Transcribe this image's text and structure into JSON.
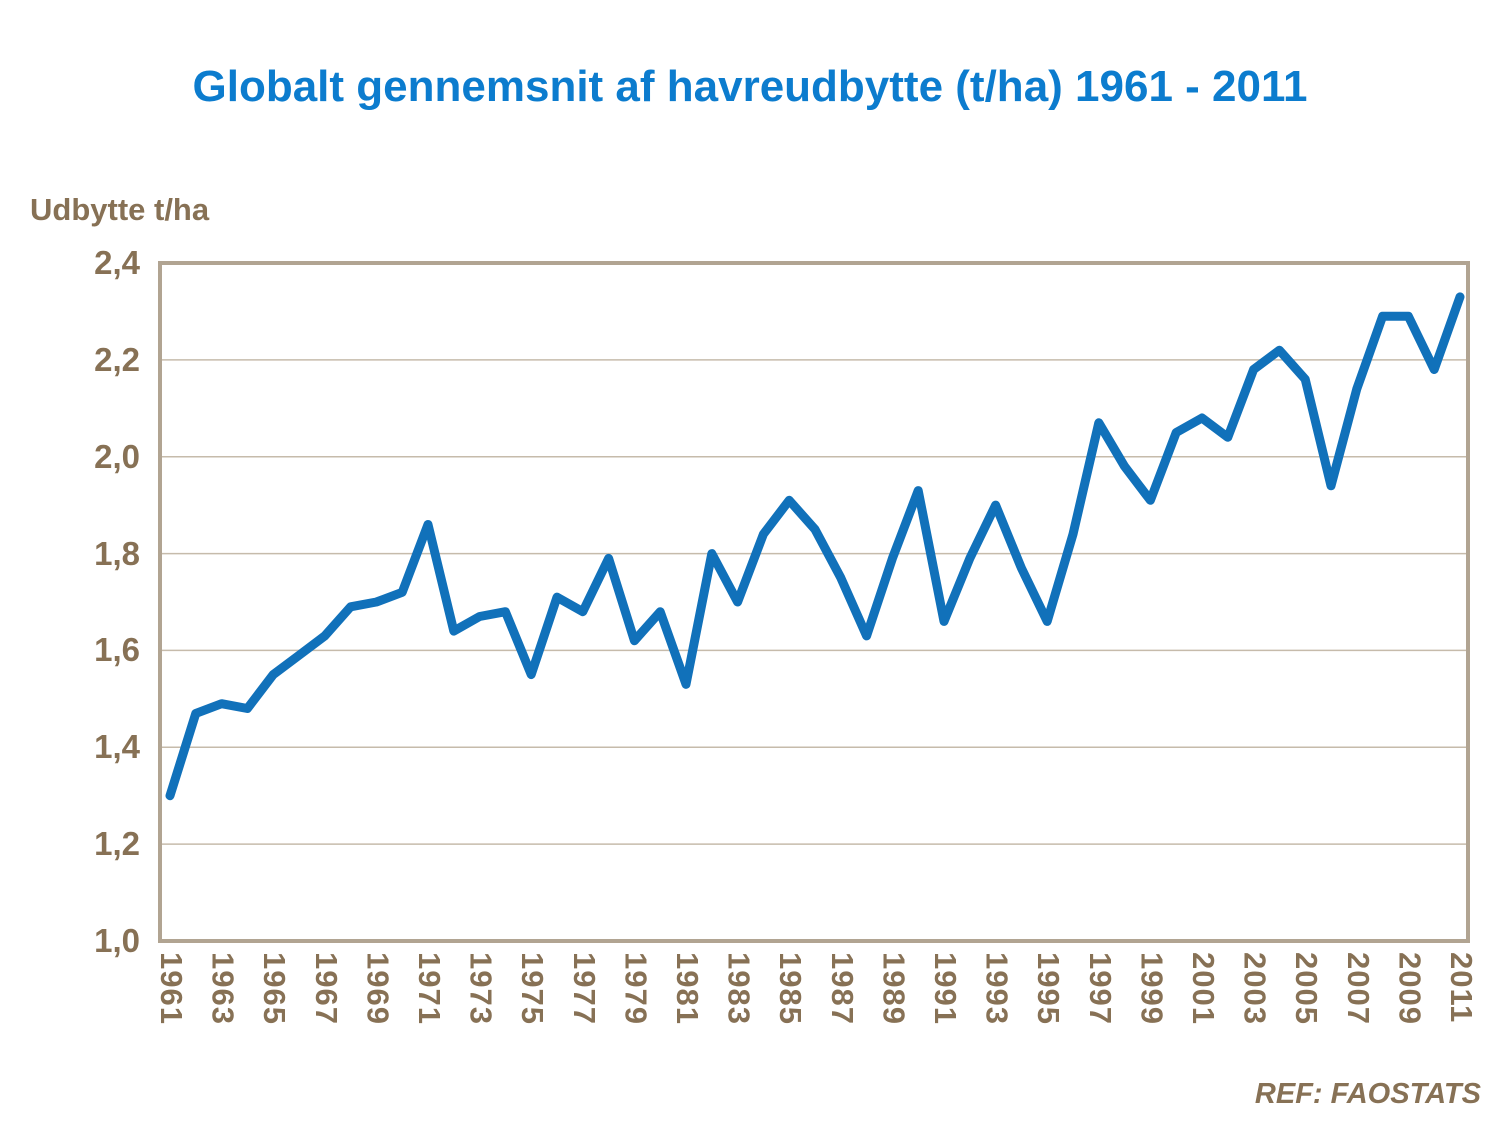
{
  "chart_data": {
    "type": "line",
    "title": "Globalt gennemsnit af havreudbytte (t/ha) 1961 - 2011",
    "ylabel": "Udbytte t/ha",
    "xlabel": "",
    "ref": "REF: FAOSTATS",
    "series_name": "Globalt gennemsnit af havreudbytte (t/ha)",
    "ylim": [
      1.0,
      2.4
    ],
    "y_tick_step": 0.2,
    "grid": "horizontal",
    "legend": "none",
    "x": [
      1961,
      1962,
      1963,
      1964,
      1965,
      1966,
      1967,
      1968,
      1969,
      1970,
      1971,
      1972,
      1973,
      1974,
      1975,
      1976,
      1977,
      1978,
      1979,
      1980,
      1981,
      1982,
      1983,
      1984,
      1985,
      1986,
      1987,
      1988,
      1989,
      1990,
      1991,
      1992,
      1993,
      1994,
      1995,
      1996,
      1997,
      1998,
      1999,
      2000,
      2001,
      2002,
      2003,
      2004,
      2005,
      2006,
      2007,
      2008,
      2009,
      2010,
      2011
    ],
    "values": [
      1.3,
      1.47,
      1.49,
      1.48,
      1.55,
      1.59,
      1.63,
      1.69,
      1.7,
      1.72,
      1.86,
      1.64,
      1.67,
      1.68,
      1.55,
      1.71,
      1.68,
      1.79,
      1.62,
      1.68,
      1.53,
      1.8,
      1.7,
      1.84,
      1.91,
      1.85,
      1.75,
      1.63,
      1.79,
      1.93,
      1.66,
      1.79,
      1.9,
      1.77,
      1.66,
      1.84,
      2.07,
      1.98,
      1.91,
      2.05,
      2.08,
      2.04,
      2.18,
      2.22,
      2.16,
      1.94,
      2.14,
      2.29,
      2.29,
      2.18,
      2.33
    ],
    "x_tick_labels": [
      "1961",
      "1963",
      "1965",
      "1967",
      "1969",
      "1971",
      "1973",
      "1975",
      "1977",
      "1979",
      "1981",
      "1983",
      "1985",
      "1987",
      "1989",
      "1991",
      "1993",
      "1995",
      "1997",
      "1999",
      "2001",
      "2003",
      "2005",
      "2007",
      "2009",
      "2011"
    ],
    "y_tick_labels": [
      "2,4",
      "2,2",
      "2,0",
      "1,8",
      "1,6",
      "1,4",
      "1,2",
      "1,0"
    ],
    "colors": {
      "line": "#1171ba",
      "title": "#0c7cce",
      "axis_text": "#877155",
      "gridline": "#c6bbab",
      "plot_border": "#b1a492",
      "background": "#ffffff"
    }
  }
}
